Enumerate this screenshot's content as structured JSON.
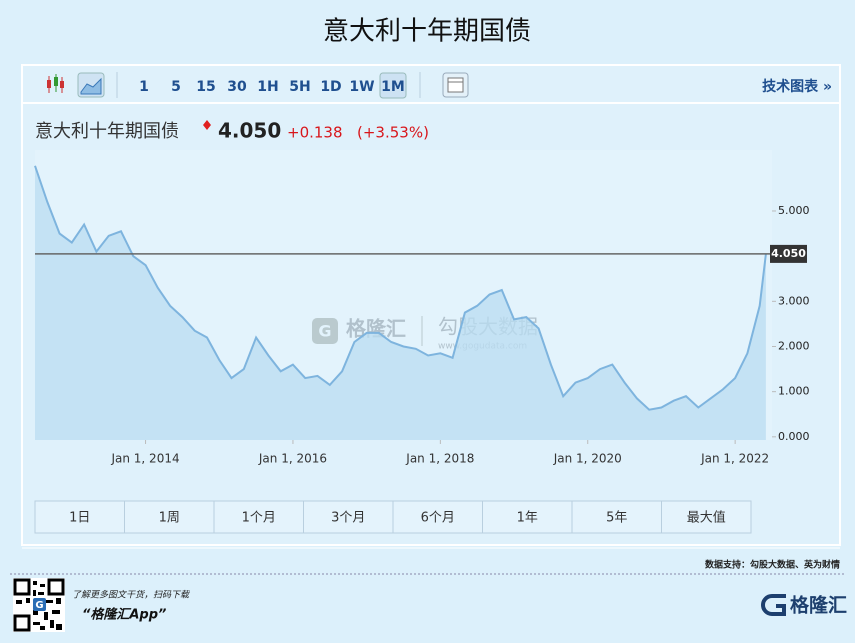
{
  "chart_data": {
    "type": "area-line",
    "title": "意大利十年期国债",
    "instrument": "意大利十年期国债",
    "last_price": {
      "value": 4.05,
      "label": "4.050"
    },
    "change": "+0.138",
    "change_pct": "(+3.53%)",
    "toolbar": {
      "intervals": [
        "1",
        "5",
        "15",
        "30",
        "1H",
        "5H",
        "1D",
        "1W",
        "1M"
      ],
      "selected": 8,
      "tech": "技术图表 »"
    },
    "ranges": [
      "1日",
      "1周",
      "1个月",
      "3个月",
      "6个月",
      "1年",
      "5年",
      "最大值"
    ],
    "watermark": {
      "brand": "格隆汇",
      "product": "勾股大数据",
      "url": "www.gogudata.com"
    },
    "source": "数据支持：勾股大数据、英为财情",
    "promo": {
      "line1": "了解更多图文干货，扫码下载",
      "line2": "“格隆汇App”"
    },
    "logo": "格隆汇",
    "x": [
      "2012-07",
      "2012-09",
      "2012-11",
      "2013-01",
      "2013-03",
      "2013-05",
      "2013-07",
      "2013-09",
      "2013-11",
      "2014-01",
      "2014-03",
      "2014-05",
      "2014-07",
      "2014-09",
      "2014-11",
      "2015-01",
      "2015-03",
      "2015-05",
      "2015-07",
      "2015-09",
      "2015-11",
      "2016-01",
      "2016-03",
      "2016-05",
      "2016-07",
      "2016-09",
      "2016-11",
      "2017-01",
      "2017-03",
      "2017-05",
      "2017-07",
      "2017-09",
      "2017-11",
      "2018-01",
      "2018-03",
      "2018-05",
      "2018-07",
      "2018-09",
      "2018-11",
      "2019-01",
      "2019-03",
      "2019-05",
      "2019-07",
      "2019-09",
      "2019-11",
      "2020-01",
      "2020-03",
      "2020-05",
      "2020-07",
      "2020-09",
      "2020-11",
      "2021-01",
      "2021-03",
      "2021-05",
      "2021-07",
      "2021-09",
      "2021-11",
      "2022-01",
      "2022-03",
      "2022-05",
      "2022-06"
    ],
    "series": [
      {
        "name": "意大利十年期国债",
        "color": "#7eb4de",
        "values": [
          6.0,
          5.2,
          4.5,
          4.3,
          4.7,
          4.1,
          4.45,
          4.55,
          4.0,
          3.8,
          3.3,
          2.9,
          2.65,
          2.35,
          2.2,
          1.7,
          1.3,
          1.5,
          2.2,
          1.8,
          1.45,
          1.6,
          1.3,
          1.35,
          1.15,
          1.45,
          2.1,
          2.3,
          2.3,
          2.1,
          2.0,
          1.95,
          1.8,
          1.85,
          1.75,
          2.75,
          2.9,
          3.15,
          3.25,
          2.6,
          2.65,
          2.4,
          1.6,
          0.9,
          1.2,
          1.3,
          1.5,
          1.6,
          1.2,
          0.85,
          0.6,
          0.65,
          0.8,
          0.9,
          0.65,
          0.85,
          1.05,
          1.3,
          1.85,
          2.9,
          4.05
        ]
      }
    ],
    "xlim": [
      "2012-07",
      "2022-07"
    ],
    "xticks": [
      {
        "value": "2014-01",
        "label": "Jan 1, 2014"
      },
      {
        "value": "2016-01",
        "label": "Jan 1, 2016"
      },
      {
        "value": "2018-01",
        "label": "Jan 1, 2018"
      },
      {
        "value": "2020-01",
        "label": "Jan 1, 2020"
      },
      {
        "value": "2022-01",
        "label": "Jan 1, 2022"
      }
    ],
    "ylim": [
      -0.07,
      6.35
    ],
    "yticks": [
      {
        "value": 0,
        "label": "0.000"
      },
      {
        "value": 1,
        "label": "1.000"
      },
      {
        "value": 2,
        "label": "2.000"
      },
      {
        "value": 3,
        "label": "3.000"
      },
      {
        "value": 5,
        "label": "5.000"
      }
    ]
  }
}
